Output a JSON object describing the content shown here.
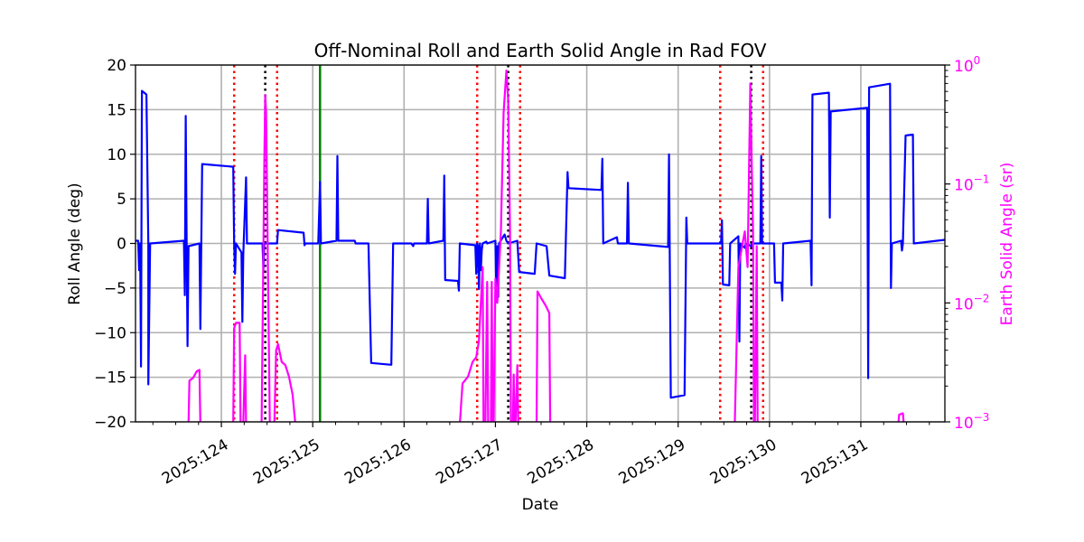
{
  "chart_data": {
    "type": "line",
    "title": "Off-Nominal Roll and Earth Solid Angle in Rad FOV",
    "xlabel": "Date",
    "ylabel": "Roll Angle (deg)",
    "ylabel_right": "Earth Solid Angle (sr)",
    "xlim": [
      123.06,
      131.92
    ],
    "ylim": [
      -20,
      20
    ],
    "ylim_right": [
      0.001,
      1
    ],
    "yscale_right": "log",
    "grid": true,
    "x_ticks": [
      {
        "value": 124,
        "label": "2025:124"
      },
      {
        "value": 125,
        "label": "2025:125"
      },
      {
        "value": 126,
        "label": "2025:126"
      },
      {
        "value": 127,
        "label": "2025:127"
      },
      {
        "value": 128,
        "label": "2025:128"
      },
      {
        "value": 129,
        "label": "2025:129"
      },
      {
        "value": 130,
        "label": "2025:130"
      },
      {
        "value": 131,
        "label": "2025:131"
      }
    ],
    "y_ticks": [
      {
        "value": 20,
        "label": "20"
      },
      {
        "value": 15,
        "label": "15"
      },
      {
        "value": 10,
        "label": "10"
      },
      {
        "value": 5,
        "label": "5"
      },
      {
        "value": 0,
        "label": "0"
      },
      {
        "value": -5,
        "label": "−5"
      },
      {
        "value": -10,
        "label": "−10"
      },
      {
        "value": -15,
        "label": "−15"
      },
      {
        "value": -20,
        "label": "−20"
      }
    ],
    "y_ticks_right": [
      {
        "value": 1,
        "base": "10",
        "exp": "0"
      },
      {
        "value": 0.1,
        "base": "10",
        "exp": "−1"
      },
      {
        "value": 0.01,
        "base": "10",
        "exp": "−2"
      },
      {
        "value": 0.001,
        "base": "10",
        "exp": "−3"
      }
    ],
    "colors": {
      "roll": "#0000ff",
      "solid_angle": "#ff00ff",
      "red_marker": "#ff0000",
      "black_marker": "#000000",
      "green_marker": "#008000",
      "grid": "#b0b0b0"
    },
    "vertical_lines": [
      {
        "x": 124.14,
        "color": "red",
        "style": "dotted"
      },
      {
        "x": 124.48,
        "color": "black",
        "style": "dotted"
      },
      {
        "x": 124.61,
        "color": "red",
        "style": "dotted"
      },
      {
        "x": 125.08,
        "color": "green",
        "style": "solid"
      },
      {
        "x": 126.8,
        "color": "red",
        "style": "dotted"
      },
      {
        "x": 127.14,
        "color": "black",
        "style": "dotted"
      },
      {
        "x": 127.27,
        "color": "red",
        "style": "dotted"
      },
      {
        "x": 129.46,
        "color": "red",
        "style": "dotted"
      },
      {
        "x": 129.8,
        "color": "black",
        "style": "dotted"
      },
      {
        "x": 129.93,
        "color": "red",
        "style": "dotted"
      }
    ],
    "series": [
      {
        "key": "roll",
        "axis": "left",
        "points": [
          [
            123.06,
            0.3
          ],
          [
            123.09,
            0.3
          ],
          [
            123.1,
            -3.0
          ],
          [
            123.11,
            0.0
          ],
          [
            123.12,
            -13.8
          ],
          [
            123.13,
            17.1
          ],
          [
            123.18,
            16.7
          ],
          [
            123.2,
            0.0
          ],
          [
            123.2,
            -15.8
          ],
          [
            123.22,
            0.0
          ],
          [
            123.59,
            0.3
          ],
          [
            123.6,
            -5.8
          ],
          [
            123.61,
            14.3
          ],
          [
            123.62,
            0.3
          ],
          [
            123.63,
            -11.5
          ],
          [
            123.64,
            -0.3
          ],
          [
            123.76,
            0.0
          ],
          [
            123.77,
            -9.6
          ],
          [
            123.79,
            8.9
          ],
          [
            124.13,
            8.6
          ],
          [
            124.14,
            0.0
          ],
          [
            124.15,
            -3.4
          ],
          [
            124.16,
            0.0
          ],
          [
            124.22,
            -1.0
          ],
          [
            124.23,
            -8.8
          ],
          [
            124.24,
            -1.3
          ],
          [
            124.27,
            7.4
          ],
          [
            124.28,
            0.0
          ],
          [
            124.45,
            0.0
          ],
          [
            124.46,
            -3.0
          ],
          [
            124.47,
            0.0
          ],
          [
            124.61,
            0.0
          ],
          [
            124.62,
            1.5
          ],
          [
            124.9,
            1.2
          ],
          [
            124.91,
            -0.2
          ],
          [
            124.92,
            0.0
          ],
          [
            125.06,
            0.0
          ],
          [
            125.08,
            6.9
          ],
          [
            125.09,
            0.0
          ],
          [
            125.26,
            0.3
          ],
          [
            125.27,
            9.8
          ],
          [
            125.28,
            0.3
          ],
          [
            125.46,
            0.3
          ],
          [
            125.47,
            0.0
          ],
          [
            125.61,
            0.0
          ],
          [
            125.64,
            -13.4
          ],
          [
            125.86,
            -13.6
          ],
          [
            125.88,
            0.0
          ],
          [
            126.08,
            0.0
          ],
          [
            126.1,
            -0.3
          ],
          [
            126.11,
            0.0
          ],
          [
            126.25,
            0.0
          ],
          [
            126.26,
            5.0
          ],
          [
            126.27,
            0.0
          ],
          [
            126.43,
            0.3
          ],
          [
            126.44,
            7.6
          ],
          [
            126.45,
            -4.1
          ],
          [
            126.59,
            -4.2
          ],
          [
            126.6,
            -5.3
          ],
          [
            126.61,
            0.0
          ],
          [
            126.78,
            -0.2
          ],
          [
            126.79,
            -3.4
          ],
          [
            126.8,
            0.0
          ],
          [
            126.81,
            -0.3
          ],
          [
            126.82,
            -5.1
          ],
          [
            126.83,
            0.0
          ],
          [
            126.84,
            -3.0
          ],
          [
            126.85,
            -0.8
          ],
          [
            126.86,
            0.0
          ],
          [
            126.9,
            0.2
          ],
          [
            126.91,
            0.0
          ],
          [
            127.0,
            0.3
          ],
          [
            127.01,
            -6.5
          ],
          [
            127.02,
            -0.3
          ],
          [
            127.03,
            -6.0
          ],
          [
            127.04,
            0.0
          ],
          [
            127.07,
            0.5
          ],
          [
            127.1,
            1.0
          ],
          [
            127.12,
            0.3
          ],
          [
            127.14,
            0.0
          ],
          [
            127.24,
            0.3
          ],
          [
            127.26,
            -3.2
          ],
          [
            127.43,
            -3.4
          ],
          [
            127.45,
            0.0
          ],
          [
            127.56,
            -0.3
          ],
          [
            127.59,
            -3.6
          ],
          [
            127.76,
            -3.9
          ],
          [
            127.79,
            8.0
          ],
          [
            127.8,
            6.2
          ],
          [
            128.16,
            6.0
          ],
          [
            128.17,
            9.5
          ],
          [
            128.18,
            0.0
          ],
          [
            128.33,
            0.7
          ],
          [
            128.34,
            0.0
          ],
          [
            128.44,
            0.0
          ],
          [
            128.45,
            6.8
          ],
          [
            128.46,
            0.0
          ],
          [
            128.89,
            -0.4
          ],
          [
            128.9,
            10.0
          ],
          [
            128.92,
            -17.3
          ],
          [
            129.07,
            -17.0
          ],
          [
            129.09,
            2.9
          ],
          [
            129.1,
            0.0
          ],
          [
            129.47,
            0.0
          ],
          [
            129.48,
            2.6
          ],
          [
            129.49,
            -4.6
          ],
          [
            129.56,
            -4.7
          ],
          [
            129.57,
            0.0
          ],
          [
            129.66,
            0.8
          ],
          [
            129.67,
            -11.0
          ],
          [
            129.68,
            0.0
          ],
          [
            129.73,
            -0.5
          ],
          [
            129.74,
            0.0
          ],
          [
            129.8,
            -0.3
          ],
          [
            129.81,
            0.0
          ],
          [
            129.9,
            0.0
          ],
          [
            129.91,
            9.8
          ],
          [
            129.92,
            0.0
          ],
          [
            130.05,
            0.0
          ],
          [
            130.06,
            -4.4
          ],
          [
            130.13,
            -4.4
          ],
          [
            130.14,
            -6.4
          ],
          [
            130.15,
            0.0
          ],
          [
            130.45,
            0.3
          ],
          [
            130.46,
            -4.7
          ],
          [
            130.47,
            16.7
          ],
          [
            130.65,
            16.9
          ],
          [
            130.66,
            2.9
          ],
          [
            130.67,
            14.8
          ],
          [
            131.07,
            15.2
          ],
          [
            131.08,
            -15.1
          ],
          [
            131.09,
            17.5
          ],
          [
            131.32,
            17.9
          ],
          [
            131.33,
            -5.0
          ],
          [
            131.34,
            0.0
          ],
          [
            131.44,
            0.3
          ],
          [
            131.45,
            -0.8
          ],
          [
            131.46,
            0.0
          ],
          [
            131.49,
            12.1
          ],
          [
            131.57,
            12.2
          ],
          [
            131.58,
            0.0
          ],
          [
            131.92,
            0.4
          ]
        ]
      },
      {
        "key": "solid_angle",
        "axis": "right",
        "segments": [
          [
            [
              123.64,
              0.00095
            ],
            [
              123.65,
              0.00222
            ],
            [
              123.69,
              0.00234
            ],
            [
              123.73,
              0.00266
            ],
            [
              123.76,
              0.00274
            ],
            [
              123.77,
              0.00095
            ]
          ],
          [
            [
              124.13,
              0.00095
            ],
            [
              124.14,
              0.00613
            ],
            [
              124.16,
              0.0068
            ],
            [
              124.2,
              0.0068
            ],
            [
              124.21,
              0.00095
            ]
          ],
          [
            [
              124.24,
              0.00095
            ],
            [
              124.26,
              0.00363
            ],
            [
              124.27,
              0.00095
            ]
          ],
          [
            [
              124.44,
              0.00095
            ],
            [
              124.47,
              0.15
            ],
            [
              124.48,
              0.56
            ],
            [
              124.49,
              0.4
            ],
            [
              124.51,
              0.02
            ],
            [
              124.53,
              0.00095
            ]
          ],
          [
            [
              124.58,
              0.00095
            ],
            [
              124.6,
              0.004
            ],
            [
              124.62,
              0.0045
            ],
            [
              124.66,
              0.0032
            ],
            [
              124.7,
              0.003
            ],
            [
              124.74,
              0.0024
            ],
            [
              124.78,
              0.0017
            ],
            [
              124.81,
              0.00095
            ]
          ],
          [
            [
              126.61,
              0.00095
            ],
            [
              126.64,
              0.0021
            ],
            [
              126.7,
              0.0024
            ],
            [
              126.75,
              0.0032
            ],
            [
              126.79,
              0.0035
            ],
            [
              126.82,
              0.0048
            ],
            [
              126.86,
              0.02
            ],
            [
              126.87,
              0.00095
            ]
          ],
          [
            [
              126.89,
              0.00095
            ],
            [
              126.91,
              0.015
            ],
            [
              126.92,
              0.00095
            ]
          ],
          [
            [
              126.95,
              0.00095
            ],
            [
              126.96,
              0.015
            ],
            [
              126.97,
              0.00095
            ]
          ],
          [
            [
              126.98,
              0.00095
            ],
            [
              127.0,
              0.016
            ],
            [
              127.02,
              0.01
            ],
            [
              127.06,
              0.04
            ],
            [
              127.09,
              0.4
            ],
            [
              127.12,
              0.9
            ],
            [
              127.14,
              0.5
            ],
            [
              127.16,
              0.04
            ],
            [
              127.17,
              0.00095
            ]
          ],
          [
            [
              127.19,
              0.00095
            ],
            [
              127.2,
              0.0025
            ],
            [
              127.21,
              0.00095
            ]
          ],
          [
            [
              127.22,
              0.00095
            ],
            [
              127.24,
              0.003
            ],
            [
              127.25,
              0.00095
            ]
          ],
          [
            [
              127.45,
              0.00095
            ],
            [
              127.46,
              0.0125
            ],
            [
              127.5,
              0.011
            ],
            [
              127.55,
              0.0095
            ],
            [
              127.59,
              0.0082
            ],
            [
              127.6,
              0.00095
            ]
          ],
          [
            [
              129.62,
              0.00095
            ],
            [
              129.66,
              0.02
            ],
            [
              129.7,
              0.03
            ],
            [
              129.73,
              0.04
            ],
            [
              129.76,
              0.02
            ],
            [
              129.79,
              0.7
            ],
            [
              129.8,
              0.25
            ],
            [
              129.82,
              0.04
            ],
            [
              129.83,
              0.00095
            ]
          ],
          [
            [
              129.84,
              0.00095
            ],
            [
              129.86,
              0.03
            ],
            [
              129.87,
              0.00095
            ]
          ],
          [
            [
              131.41,
              0.00095
            ],
            [
              131.42,
              0.00115
            ],
            [
              131.46,
              0.00118
            ],
            [
              131.47,
              0.00095
            ]
          ]
        ]
      }
    ]
  }
}
